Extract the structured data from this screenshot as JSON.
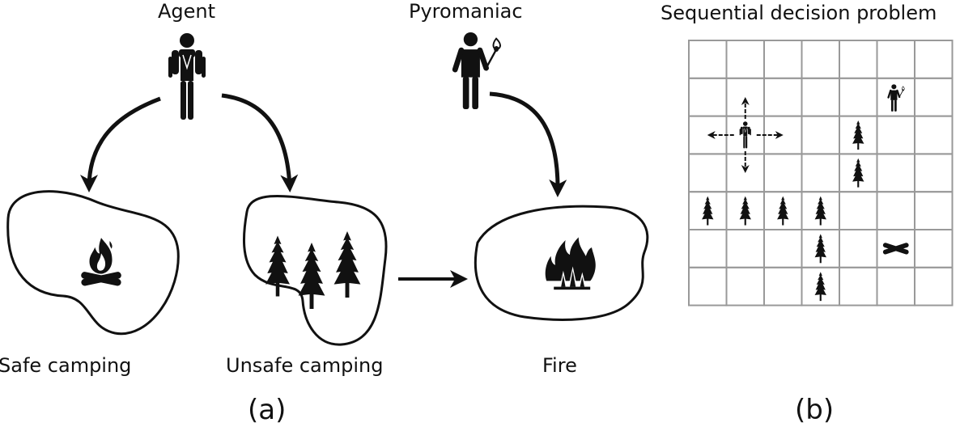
{
  "labels": {
    "agent": "Agent",
    "pyromaniac": "Pyromaniac",
    "safe_camping": "Safe camping",
    "unsafe_camping": "Unsafe camping",
    "fire": "Fire",
    "panel_a": "(a)",
    "panel_b": "(b)",
    "grid_title": "Sequential decision problem"
  },
  "icons": {
    "agent": "hiker-icon",
    "pyromaniac": "person-with-match-icon",
    "campfire": "campfire-icon",
    "trees": "pine-tree-icon",
    "fire": "burning-trees-icon"
  },
  "grid": {
    "cols": 7,
    "rows": 7,
    "agent_cell": [
      1,
      2
    ],
    "pyromaniac_cell": [
      5,
      1
    ],
    "campfire_cell": [
      5,
      5
    ],
    "tree_cells": [
      [
        4,
        2
      ],
      [
        4,
        3
      ],
      [
        0,
        4
      ],
      [
        1,
        4
      ],
      [
        2,
        4
      ],
      [
        3,
        4
      ],
      [
        3,
        5
      ],
      [
        3,
        6
      ]
    ],
    "agent_moves": [
      "up",
      "down",
      "left",
      "right"
    ]
  }
}
